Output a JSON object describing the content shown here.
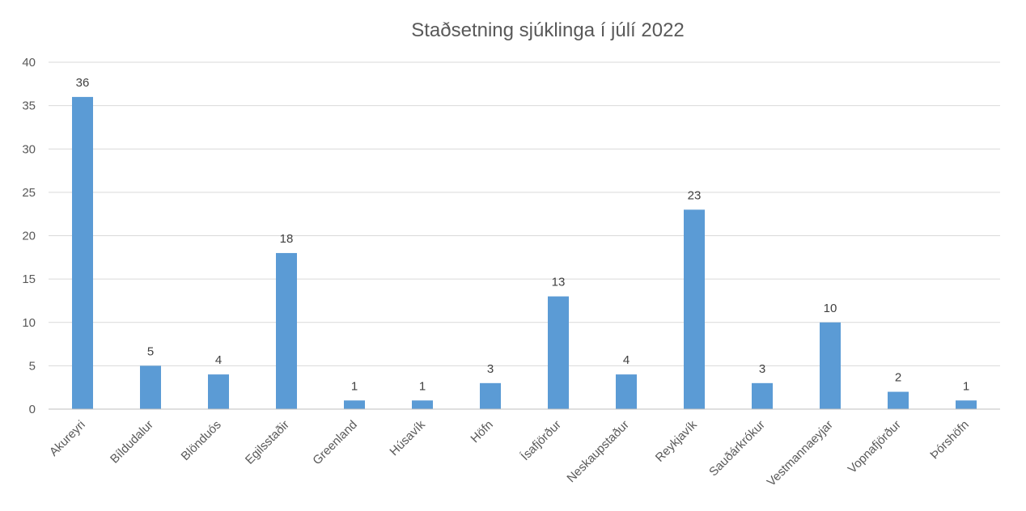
{
  "chart_data": {
    "type": "bar",
    "title": "Staðsetning sjúklinga í júlí 2022",
    "xlabel": "",
    "ylabel": "",
    "categories": [
      "Akureyri",
      "Bíldudalur",
      "Blönduós",
      "Egilsstaðir",
      "Greenland",
      "Húsavík",
      "Höfn",
      "Ísafjörður",
      "Neskaupstaður",
      "Reykjavík",
      "Sauðárkrókur",
      "Vestmannaeyjar",
      "Vopnafjörður",
      "Þórshöfn"
    ],
    "values": [
      36,
      5,
      4,
      18,
      1,
      1,
      3,
      13,
      4,
      23,
      3,
      10,
      2,
      1
    ],
    "ylim": [
      0,
      40
    ],
    "yticks": [
      0,
      5,
      10,
      15,
      20,
      25,
      30,
      35,
      40
    ],
    "grid": true,
    "legend": "none",
    "bar_color": "#5b9bd5"
  }
}
